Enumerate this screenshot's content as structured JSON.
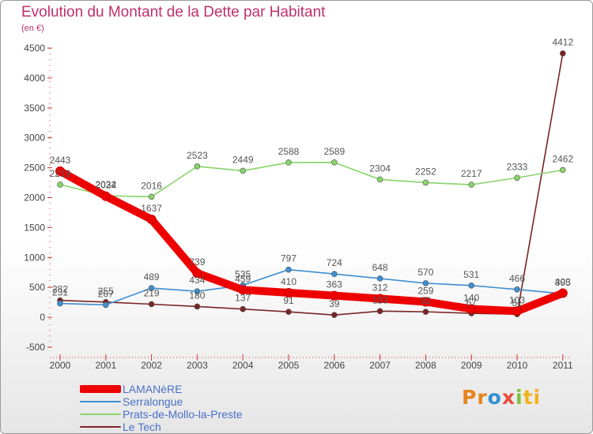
{
  "title": "Evolution du Montant de la Dette par Habitant",
  "subtitle": "(en €)",
  "logo": {
    "parts": [
      "Pr",
      "o",
      "x",
      "i",
      "ti"
    ],
    "colors": [
      "#e8841a",
      "#2f8fd0",
      "#e84c3d",
      "#7cc23a",
      "#f2b21d"
    ]
  },
  "chart_data": {
    "type": "line",
    "title": "Evolution du Montant de la Dette par Habitant",
    "subtitle": "(en €)",
    "x": [
      "2000",
      "2001",
      "2002",
      "2003",
      "2004",
      "2005",
      "2006",
      "2007",
      "2008",
      "2009",
      "2010",
      "2011"
    ],
    "ylim": [
      -500,
      4500
    ],
    "yticks": [
      "-500",
      "0",
      "500",
      "1000",
      "1500",
      "2000",
      "2500",
      "3000",
      "3500",
      "4000",
      "4500"
    ],
    "grid": false,
    "legend_position": "bottom-left",
    "series": [
      {
        "name": "LAMANèRE",
        "color": "#ee0000",
        "values": [
          2443,
          2024,
          1637,
          739,
          459,
          410,
          363,
          312,
          259,
          140,
          103,
          403
        ],
        "labels": [
          "2443",
          "2024",
          "1637",
          "739",
          "459",
          "410",
          "363",
          "312",
          "259",
          "140",
          "103",
          "403"
        ]
      },
      {
        "name": "Serralongue",
        "color": "#3e8fd0",
        "values": [
          231,
          207,
          489,
          434,
          535,
          797,
          724,
          648,
          570,
          531,
          466,
          395
        ],
        "labels": [
          "231",
          "207",
          "489",
          "434",
          "535",
          "797",
          "724",
          "648",
          "570",
          "531",
          "466",
          "395"
        ]
      },
      {
        "name": "Prats-de-Mollo-la-Preste",
        "color": "#88d46a",
        "values": [
          2219,
          2032,
          2016,
          2523,
          2449,
          2588,
          2589,
          2304,
          2252,
          2217,
          2333,
          2462
        ],
        "labels": [
          "2219",
          "2032",
          "2016",
          "2523",
          "2449",
          "2588",
          "2589",
          "2304",
          "2252",
          "2217",
          "2333",
          "2462"
        ]
      },
      {
        "name": "Le Tech",
        "color": "#7a2424",
        "values": [
          282,
          255,
          219,
          180,
          137,
          91,
          39,
          103,
          92,
          67,
          51,
          4412
        ],
        "labels": [
          "282",
          "255",
          "219",
          "180",
          "137",
          "91",
          "39",
          "103",
          "92",
          "67",
          "51",
          "4412"
        ]
      }
    ]
  }
}
